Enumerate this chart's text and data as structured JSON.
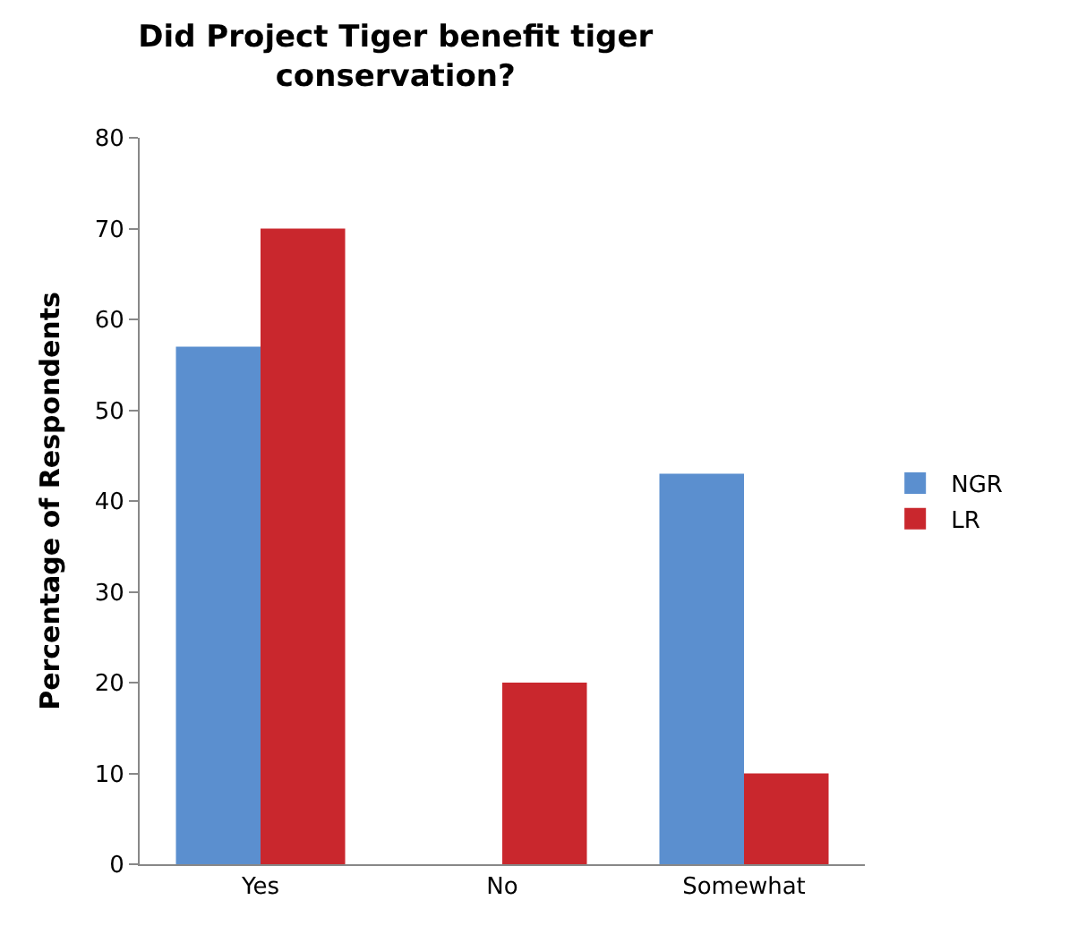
{
  "chart_data": {
    "type": "bar",
    "title": "Did Project Tiger benefit tiger conservation?",
    "ylabel": "Percentage of Respondents",
    "categories": [
      "Yes",
      "No",
      "Somewhat"
    ],
    "series": [
      {
        "name": "NGR",
        "color": "#5b8fcf",
        "values": [
          57,
          0,
          43
        ]
      },
      {
        "name": "LR",
        "color": "#c9272d",
        "values": [
          70,
          20,
          10
        ]
      }
    ],
    "ylim": [
      0,
      80
    ],
    "yticks": [
      0,
      10,
      20,
      30,
      40,
      50,
      60,
      70,
      80
    ],
    "grid": false,
    "legend": "right"
  }
}
